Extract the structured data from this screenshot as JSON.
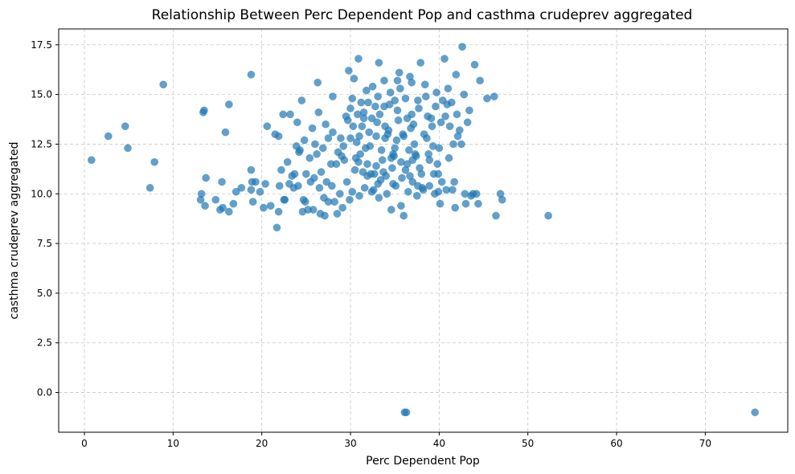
{
  "chart_data": {
    "type": "scatter",
    "title": "Relationship Between Perc Dependent Pop and casthma crudeprev aggregated",
    "xlabel": "Perc Dependent Pop",
    "ylabel": "casthma crudeprev aggregated",
    "xlim": [
      -2.9,
      79.3
    ],
    "ylim": [
      -2.0,
      18.3
    ],
    "xticks": [
      0,
      10,
      20,
      30,
      40,
      50,
      60,
      70
    ],
    "yticks": [
      0.0,
      2.5,
      5.0,
      7.5,
      10.0,
      12.5,
      15.0,
      17.5
    ],
    "xtick_labels": [
      "0",
      "10",
      "20",
      "30",
      "40",
      "50",
      "60",
      "70"
    ],
    "ytick_labels": [
      "0.0",
      "2.5",
      "5.0",
      "7.5",
      "10.0",
      "12.5",
      "15.0",
      "17.5"
    ],
    "grid": true,
    "point_color": "#1f77b4",
    "point_alpha": 0.7,
    "points": [
      [
        0.8,
        11.7
      ],
      [
        2.7,
        12.9
      ],
      [
        4.6,
        13.4
      ],
      [
        4.9,
        12.3
      ],
      [
        7.4,
        10.3
      ],
      [
        7.9,
        11.6
      ],
      [
        8.9,
        15.5
      ],
      [
        13.1,
        9.7
      ],
      [
        13.2,
        10.0
      ],
      [
        13.4,
        14.1
      ],
      [
        13.5,
        14.2
      ],
      [
        13.6,
        9.4
      ],
      [
        13.7,
        10.8
      ],
      [
        14.8,
        9.7
      ],
      [
        15.3,
        9.2
      ],
      [
        15.6,
        9.3
      ],
      [
        15.5,
        10.6
      ],
      [
        15.9,
        13.1
      ],
      [
        16.3,
        14.5
      ],
      [
        16.3,
        9.1
      ],
      [
        16.8,
        9.5
      ],
      [
        17.1,
        10.1
      ],
      [
        17.7,
        10.3
      ],
      [
        18.8,
        16.0
      ],
      [
        18.9,
        10.6
      ],
      [
        18.8,
        11.2
      ],
      [
        19.0,
        9.6
      ],
      [
        18.8,
        10.2
      ],
      [
        19.3,
        10.6
      ],
      [
        19.8,
        10.1
      ],
      [
        20.2,
        9.3
      ],
      [
        20.4,
        10.5
      ],
      [
        20.6,
        13.4
      ],
      [
        21.0,
        9.4
      ],
      [
        21.5,
        13.0
      ],
      [
        21.7,
        8.3
      ],
      [
        21.9,
        12.9
      ],
      [
        21.9,
        9.1
      ],
      [
        22.0,
        10.4
      ],
      [
        22.2,
        11.2
      ],
      [
        22.4,
        14.0
      ],
      [
        22.5,
        9.7
      ],
      [
        22.6,
        9.7
      ],
      [
        22.9,
        11.6
      ],
      [
        23.1,
        10.5
      ],
      [
        23.2,
        14.0
      ],
      [
        23.4,
        10.9
      ],
      [
        23.6,
        10.3
      ],
      [
        23.7,
        11.0
      ],
      [
        24.0,
        13.6
      ],
      [
        24.2,
        12.1
      ],
      [
        24.3,
        12.2
      ],
      [
        24.1,
        10.4
      ],
      [
        24.5,
        14.7
      ],
      [
        24.6,
        9.1
      ],
      [
        24.7,
        9.7
      ],
      [
        24.9,
        9.6
      ],
      [
        25.0,
        11.0
      ],
      [
        25.2,
        9.2
      ],
      [
        25.5,
        10.6
      ],
      [
        25.8,
        9.2
      ],
      [
        25.9,
        10.8
      ],
      [
        26.0,
        12.5
      ],
      [
        26.3,
        15.6
      ],
      [
        26.4,
        14.1
      ],
      [
        26.6,
        9.0
      ],
      [
        26.9,
        12.3
      ],
      [
        27.1,
        8.9
      ],
      [
        27.2,
        13.5
      ],
      [
        27.5,
        9.6
      ],
      [
        27.8,
        11.5
      ],
      [
        28.0,
        14.9
      ],
      [
        28.2,
        9.6
      ],
      [
        28.5,
        9.0
      ],
      [
        28.6,
        12.1
      ],
      [
        28.9,
        12.8
      ],
      [
        29.1,
        9.3
      ],
      [
        29.3,
        11.7
      ],
      [
        29.5,
        13.9
      ],
      [
        29.7,
        13.7
      ],
      [
        29.8,
        16.2
      ],
      [
        30.0,
        12.8
      ],
      [
        30.2,
        10.1
      ],
      [
        30.3,
        13.4
      ],
      [
        30.4,
        15.8
      ],
      [
        30.6,
        11.8
      ],
      [
        30.8,
        14.0
      ],
      [
        30.9,
        16.8
      ],
      [
        31.0,
        12.9
      ],
      [
        31.2,
        14.6
      ],
      [
        31.4,
        11.1
      ],
      [
        31.5,
        13.8
      ],
      [
        31.6,
        10.3
      ],
      [
        31.9,
        11.5
      ],
      [
        32.0,
        14.6
      ],
      [
        32.2,
        12.4
      ],
      [
        32.4,
        13.8
      ],
      [
        32.5,
        15.4
      ],
      [
        32.7,
        11.0
      ],
      [
        32.9,
        11.4
      ],
      [
        33.0,
        13.6
      ],
      [
        33.1,
        14.9
      ],
      [
        33.2,
        16.6
      ],
      [
        33.4,
        10.7
      ],
      [
        33.6,
        11.7
      ],
      [
        33.8,
        14.4
      ],
      [
        33.9,
        12.8
      ],
      [
        34.1,
        10.0
      ],
      [
        34.3,
        13.2
      ],
      [
        34.5,
        15.1
      ],
      [
        34.6,
        11.8
      ],
      [
        34.8,
        12.0
      ],
      [
        35.0,
        14.7
      ],
      [
        35.1,
        10.4
      ],
      [
        35.3,
        15.7
      ],
      [
        35.5,
        16.1
      ],
      [
        35.7,
        11.6
      ],
      [
        35.9,
        13.0
      ],
      [
        36.0,
        8.9
      ],
      [
        36.1,
        -1.0
      ],
      [
        36.3,
        -1.0
      ],
      [
        36.2,
        14.8
      ],
      [
        36.4,
        11.5
      ],
      [
        36.5,
        10.1
      ],
      [
        36.7,
        15.9
      ],
      [
        36.9,
        14.0
      ],
      [
        37.0,
        10.6
      ],
      [
        37.2,
        12.5
      ],
      [
        37.4,
        11.9
      ],
      [
        37.6,
        10.4
      ],
      [
        37.7,
        14.3
      ],
      [
        37.9,
        16.6
      ],
      [
        38.1,
        10.3
      ],
      [
        38.3,
        13.0
      ],
      [
        38.5,
        14.9
      ],
      [
        38.7,
        13.9
      ],
      [
        38.9,
        11.7
      ],
      [
        39.1,
        13.8
      ],
      [
        39.3,
        12.4
      ],
      [
        39.5,
        10.0
      ],
      [
        39.7,
        15.1
      ],
      [
        39.9,
        11.0
      ],
      [
        40.1,
        9.5
      ],
      [
        40.2,
        13.6
      ],
      [
        40.4,
        14.7
      ],
      [
        40.6,
        16.8
      ],
      [
        40.8,
        10.2
      ],
      [
        41.0,
        15.3
      ],
      [
        41.2,
        13.4
      ],
      [
        41.4,
        14.6
      ],
      [
        41.6,
        12.5
      ],
      [
        41.8,
        9.3
      ],
      [
        41.9,
        16.0
      ],
      [
        42.1,
        12.9
      ],
      [
        42.3,
        13.2
      ],
      [
        42.6,
        17.4
      ],
      [
        42.8,
        15.0
      ],
      [
        43.0,
        9.5
      ],
      [
        43.2,
        13.6
      ],
      [
        43.4,
        14.2
      ],
      [
        43.6,
        9.9
      ],
      [
        43.8,
        10.0
      ],
      [
        44.0,
        16.5
      ],
      [
        44.2,
        10.0
      ],
      [
        44.4,
        9.5
      ],
      [
        44.6,
        15.7
      ],
      [
        45.4,
        14.8
      ],
      [
        46.2,
        14.9
      ],
      [
        46.4,
        8.9
      ],
      [
        46.9,
        10.0
      ],
      [
        47.1,
        9.7
      ],
      [
        52.3,
        8.9
      ],
      [
        75.6,
        -1.0
      ],
      [
        30.5,
        11.2
      ],
      [
        31.1,
        12.0
      ],
      [
        32.1,
        13.1
      ],
      [
        33.5,
        12.2
      ],
      [
        34.0,
        10.9
      ],
      [
        34.7,
        11.3
      ],
      [
        35.2,
        12.7
      ],
      [
        35.8,
        10.8
      ],
      [
        36.6,
        12.2
      ],
      [
        37.1,
        13.5
      ],
      [
        37.8,
        11.3
      ],
      [
        38.2,
        10.2
      ],
      [
        38.8,
        12.0
      ],
      [
        39.4,
        11.0
      ],
      [
        40.0,
        12.3
      ],
      [
        28.0,
        13.1
      ],
      [
        29.0,
        11.9
      ],
      [
        30.0,
        14.3
      ],
      [
        31.3,
        13.4
      ],
      [
        32.6,
        10.2
      ],
      [
        33.3,
        14.0
      ],
      [
        34.4,
        14.5
      ],
      [
        35.4,
        13.7
      ],
      [
        36.8,
        13.3
      ],
      [
        27.3,
        10.6
      ],
      [
        26.2,
        12.0
      ],
      [
        25.4,
        11.8
      ],
      [
        24.8,
        12.7
      ],
      [
        23.9,
        12.4
      ],
      [
        27.9,
        10.4
      ],
      [
        28.8,
        10.0
      ],
      [
        29.6,
        10.6
      ],
      [
        30.9,
        11.6
      ],
      [
        32.3,
        11.0
      ],
      [
        33.7,
        11.1
      ],
      [
        34.9,
        11.9
      ],
      [
        36.0,
        12.9
      ],
      [
        37.3,
        12.0
      ],
      [
        38.6,
        12.8
      ],
      [
        39.8,
        11.5
      ],
      [
        41.1,
        11.8
      ],
      [
        42.5,
        12.5
      ],
      [
        31.8,
        15.2
      ],
      [
        33.8,
        15.7
      ],
      [
        35.6,
        15.3
      ],
      [
        36.9,
        15.6
      ],
      [
        38.4,
        15.5
      ],
      [
        39.6,
        14.4
      ],
      [
        40.7,
        13.9
      ],
      [
        30.2,
        14.8
      ],
      [
        31.5,
        14.1
      ],
      [
        32.8,
        14.4
      ],
      [
        34.2,
        13.0
      ],
      [
        35.0,
        12.3
      ],
      [
        36.4,
        13.8
      ],
      [
        37.6,
        14.7
      ],
      [
        29.2,
        12.4
      ],
      [
        28.4,
        11.5
      ],
      [
        27.5,
        12.8
      ],
      [
        26.7,
        11.1
      ],
      [
        25.7,
        13.3
      ],
      [
        26.5,
        10.3
      ],
      [
        27.0,
        9.8
      ],
      [
        29.9,
        9.7
      ],
      [
        31.0,
        9.9
      ],
      [
        32.4,
        10.1
      ],
      [
        33.2,
        9.8
      ],
      [
        34.6,
        9.2
      ],
      [
        35.7,
        9.4
      ],
      [
        37.5,
        9.9
      ],
      [
        38.9,
        10.4
      ],
      [
        40.3,
        10.6
      ],
      [
        41.5,
        10.2
      ],
      [
        42.9,
        10.0
      ],
      [
        39.2,
        13.4
      ],
      [
        40.9,
        14.5
      ],
      [
        42.0,
        14.0
      ],
      [
        30.7,
        12.6
      ],
      [
        31.7,
        12.3
      ],
      [
        32.9,
        12.9
      ],
      [
        33.9,
        13.4
      ],
      [
        35.3,
        14.2
      ],
      [
        36.2,
        11.2
      ],
      [
        37.0,
        11.7
      ],
      [
        34.8,
        10.5
      ],
      [
        33.1,
        10.5
      ],
      [
        31.9,
        10.9
      ],
      [
        36.7,
        10.9
      ],
      [
        38.0,
        11.0
      ],
      [
        39.9,
        10.1
      ],
      [
        41.7,
        10.6
      ]
    ]
  }
}
